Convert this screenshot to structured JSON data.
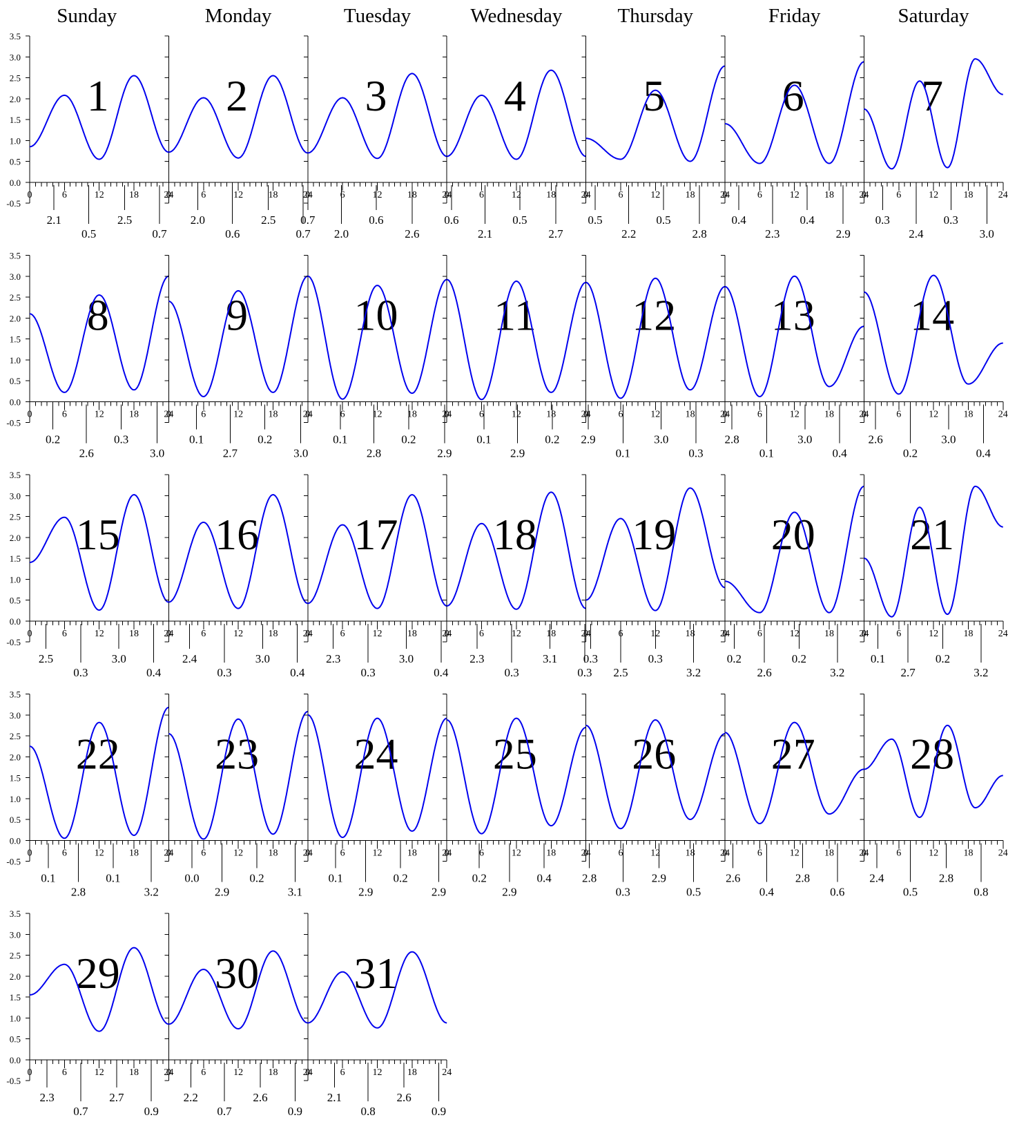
{
  "weekdays": [
    "Sunday",
    "Monday",
    "Tuesday",
    "Wednesday",
    "Thursday",
    "Friday",
    "Saturday"
  ],
  "colors": {
    "line": "#0000ee",
    "axis": "#000000",
    "text": "#000000",
    "background": "#ffffff"
  },
  "chart_data": {
    "type": "line",
    "layout": "monthly calendar grid of small multiples, weeks start on Sunday, 31 days",
    "x_axis": {
      "min": 0,
      "max": 24,
      "major_ticks": [
        0,
        6,
        12,
        18,
        24
      ],
      "minor_tick_step": 1
    },
    "y_axis": {
      "min": -0.5,
      "max": 3.5,
      "ticks": [
        "-0.5",
        "0.0",
        "0.5",
        "1.0",
        "1.5",
        "2.0",
        "2.5",
        "3.0",
        "3.5"
      ]
    },
    "grid": false,
    "legend": "none",
    "days": [
      {
        "day": 1,
        "y": [
          0.85,
          2.08,
          0.55,
          2.55,
          0.72
        ],
        "extrema": [
          {
            "hour": 4.2,
            "value": "2.1"
          },
          {
            "hour": 10.2,
            "value": "0.5"
          },
          {
            "hour": 16.4,
            "value": "2.5"
          },
          {
            "hour": 22.4,
            "value": "0.7"
          }
        ]
      },
      {
        "day": 2,
        "y": [
          0.72,
          2.02,
          0.58,
          2.55,
          0.7
        ],
        "extrema": [
          {
            "hour": 5.0,
            "value": "2.0"
          },
          {
            "hour": 11.0,
            "value": "0.6"
          },
          {
            "hour": 17.2,
            "value": "2.5"
          },
          {
            "hour": 23.2,
            "value": "0.7"
          }
        ]
      },
      {
        "day": 3,
        "y": [
          0.7,
          2.02,
          0.57,
          2.6,
          0.62
        ],
        "extrema": [
          {
            "hour": 0.0,
            "value": "0.7"
          },
          {
            "hour": 5.8,
            "value": "2.0"
          },
          {
            "hour": 11.8,
            "value": "0.6"
          },
          {
            "hour": 18.0,
            "value": "2.6"
          }
        ]
      },
      {
        "day": 4,
        "y": [
          0.62,
          2.08,
          0.55,
          2.68,
          0.62
        ],
        "extrema": [
          {
            "hour": 0.8,
            "value": "0.6"
          },
          {
            "hour": 6.6,
            "value": "2.1"
          },
          {
            "hour": 12.6,
            "value": "0.5"
          },
          {
            "hour": 18.8,
            "value": "2.7"
          }
        ]
      },
      {
        "day": 5,
        "y": [
          1.05,
          0.55,
          2.2,
          0.5,
          2.78
        ],
        "extrema": [
          {
            "hour": 1.6,
            "value": "0.5"
          },
          {
            "hour": 7.4,
            "value": "2.2"
          },
          {
            "hour": 13.4,
            "value": "0.5"
          },
          {
            "hour": 19.6,
            "value": "2.8"
          }
        ]
      },
      {
        "day": 6,
        "y": [
          1.4,
          0.45,
          2.32,
          0.45,
          2.88
        ],
        "extrema": [
          {
            "hour": 2.4,
            "value": "0.4"
          },
          {
            "hour": 8.2,
            "value": "2.3"
          },
          {
            "hour": 14.2,
            "value": "0.4"
          },
          {
            "hour": 20.4,
            "value": "2.9"
          }
        ]
      },
      {
        "day": 7,
        "y": [
          1.75,
          0.32,
          2.42,
          0.35,
          2.95,
          2.1
        ],
        "extrema": [
          {
            "hour": 3.2,
            "value": "0.3"
          },
          {
            "hour": 9.0,
            "value": "2.4"
          },
          {
            "hour": 15.0,
            "value": "0.3"
          },
          {
            "hour": 21.2,
            "value": "3.0"
          }
        ]
      },
      {
        "day": 8,
        "y": [
          2.1,
          0.22,
          2.55,
          0.28,
          3.0
        ],
        "extrema": [
          {
            "hour": 4.0,
            "value": "0.2"
          },
          {
            "hour": 9.8,
            "value": "2.6"
          },
          {
            "hour": 15.8,
            "value": "0.3"
          },
          {
            "hour": 22.0,
            "value": "3.0"
          }
        ]
      },
      {
        "day": 9,
        "y": [
          2.4,
          0.12,
          2.65,
          0.22,
          3.0
        ],
        "extrema": [
          {
            "hour": 4.8,
            "value": "0.1"
          },
          {
            "hour": 10.6,
            "value": "2.7"
          },
          {
            "hour": 16.6,
            "value": "0.2"
          },
          {
            "hour": 22.8,
            "value": "3.0"
          }
        ]
      },
      {
        "day": 10,
        "y": [
          3.0,
          0.06,
          2.78,
          0.2,
          2.92
        ],
        "extrema": [
          {
            "hour": 5.6,
            "value": "0.1"
          },
          {
            "hour": 11.4,
            "value": "2.8"
          },
          {
            "hour": 17.4,
            "value": "0.2"
          },
          {
            "hour": 23.6,
            "value": "2.9"
          }
        ]
      },
      {
        "day": 11,
        "y": [
          2.92,
          0.05,
          2.88,
          0.22,
          2.85
        ],
        "extrema": [
          {
            "hour": 6.4,
            "value": "0.1"
          },
          {
            "hour": 12.2,
            "value": "2.9"
          },
          {
            "hour": 18.2,
            "value": "0.2"
          }
        ]
      },
      {
        "day": 12,
        "y": [
          2.85,
          0.08,
          2.95,
          0.28,
          2.75
        ],
        "extrema": [
          {
            "hour": 0.4,
            "value": "2.9"
          },
          {
            "hour": 6.4,
            "value": "0.1"
          },
          {
            "hour": 13.0,
            "value": "3.0"
          },
          {
            "hour": 19.0,
            "value": "0.3"
          }
        ]
      },
      {
        "day": 13,
        "y": [
          2.75,
          0.12,
          3.0,
          0.36,
          1.8
        ],
        "extrema": [
          {
            "hour": 1.2,
            "value": "2.8"
          },
          {
            "hour": 7.2,
            "value": "0.1"
          },
          {
            "hour": 13.8,
            "value": "3.0"
          },
          {
            "hour": 19.8,
            "value": "0.4"
          }
        ]
      },
      {
        "day": 14,
        "y": [
          2.62,
          0.18,
          3.02,
          0.42,
          1.4
        ],
        "extrema": [
          {
            "hour": 2.0,
            "value": "2.6"
          },
          {
            "hour": 8.0,
            "value": "0.2"
          },
          {
            "hour": 14.6,
            "value": "3.0"
          },
          {
            "hour": 20.6,
            "value": "0.4"
          }
        ]
      },
      {
        "day": 15,
        "y": [
          1.4,
          2.48,
          0.26,
          3.02,
          0.45
        ],
        "extrema": [
          {
            "hour": 2.8,
            "value": "2.5"
          },
          {
            "hour": 8.8,
            "value": "0.3"
          },
          {
            "hour": 15.4,
            "value": "3.0"
          },
          {
            "hour": 21.4,
            "value": "0.4"
          }
        ]
      },
      {
        "day": 16,
        "y": [
          0.45,
          2.36,
          0.3,
          3.02,
          0.42
        ],
        "extrema": [
          {
            "hour": 3.6,
            "value": "2.4"
          },
          {
            "hour": 9.6,
            "value": "0.3"
          },
          {
            "hour": 16.2,
            "value": "3.0"
          },
          {
            "hour": 22.2,
            "value": "0.4"
          }
        ]
      },
      {
        "day": 17,
        "y": [
          0.42,
          2.3,
          0.3,
          3.02,
          0.36
        ],
        "extrema": [
          {
            "hour": 4.4,
            "value": "2.3"
          },
          {
            "hour": 10.4,
            "value": "0.3"
          },
          {
            "hour": 17.0,
            "value": "3.0"
          },
          {
            "hour": 23.0,
            "value": "0.4"
          }
        ]
      },
      {
        "day": 18,
        "y": [
          0.36,
          2.33,
          0.28,
          3.08,
          0.3
        ],
        "extrema": [
          {
            "hour": 5.2,
            "value": "2.3"
          },
          {
            "hour": 11.2,
            "value": "0.3"
          },
          {
            "hour": 17.8,
            "value": "3.1"
          },
          {
            "hour": 23.8,
            "value": "0.3"
          }
        ]
      },
      {
        "day": 19,
        "y": [
          0.5,
          2.45,
          0.25,
          3.18,
          0.8
        ],
        "extrema": [
          {
            "hour": 0.8,
            "value": "0.3"
          },
          {
            "hour": 6.0,
            "value": "2.5"
          },
          {
            "hour": 12.0,
            "value": "0.3"
          },
          {
            "hour": 18.6,
            "value": "3.2"
          }
        ]
      },
      {
        "day": 20,
        "y": [
          0.95,
          0.2,
          2.6,
          0.2,
          3.22
        ],
        "extrema": [
          {
            "hour": 1.6,
            "value": "0.2"
          },
          {
            "hour": 6.8,
            "value": "2.6"
          },
          {
            "hour": 12.8,
            "value": "0.2"
          },
          {
            "hour": 19.4,
            "value": "3.2"
          }
        ]
      },
      {
        "day": 21,
        "y": [
          1.5,
          0.1,
          2.72,
          0.16,
          3.22,
          2.25
        ],
        "extrema": [
          {
            "hour": 2.4,
            "value": "0.1"
          },
          {
            "hour": 7.6,
            "value": "2.7"
          },
          {
            "hour": 13.6,
            "value": "0.2"
          },
          {
            "hour": 20.2,
            "value": "3.2"
          }
        ]
      },
      {
        "day": 22,
        "y": [
          2.25,
          0.05,
          2.82,
          0.12,
          3.18
        ],
        "extrema": [
          {
            "hour": 3.2,
            "value": "0.1"
          },
          {
            "hour": 8.4,
            "value": "2.8"
          },
          {
            "hour": 14.4,
            "value": "0.1"
          },
          {
            "hour": 21.0,
            "value": "3.2"
          }
        ]
      },
      {
        "day": 23,
        "y": [
          2.55,
          0.03,
          2.9,
          0.15,
          3.08
        ],
        "extrema": [
          {
            "hour": 4.0,
            "value": "0.0"
          },
          {
            "hour": 9.2,
            "value": "2.9"
          },
          {
            "hour": 15.2,
            "value": "0.2"
          },
          {
            "hour": 21.8,
            "value": "3.1"
          }
        ]
      },
      {
        "day": 24,
        "y": [
          3.0,
          0.07,
          2.92,
          0.22,
          2.92
        ],
        "extrema": [
          {
            "hour": 4.8,
            "value": "0.1"
          },
          {
            "hour": 10.0,
            "value": "2.9"
          },
          {
            "hour": 16.0,
            "value": "0.2"
          },
          {
            "hour": 22.6,
            "value": "2.9"
          }
        ]
      },
      {
        "day": 25,
        "y": [
          2.88,
          0.16,
          2.92,
          0.35,
          2.7
        ],
        "extrema": [
          {
            "hour": 5.6,
            "value": "0.2"
          },
          {
            "hour": 10.8,
            "value": "2.9"
          },
          {
            "hour": 16.8,
            "value": "0.4"
          }
        ]
      },
      {
        "day": 26,
        "y": [
          2.75,
          0.28,
          2.88,
          0.5,
          2.55
        ],
        "extrema": [
          {
            "hour": 0.6,
            "value": "2.8"
          },
          {
            "hour": 6.4,
            "value": "0.3"
          },
          {
            "hour": 12.6,
            "value": "2.9"
          },
          {
            "hour": 18.6,
            "value": "0.5"
          }
        ]
      },
      {
        "day": 27,
        "y": [
          2.58,
          0.4,
          2.82,
          0.63,
          1.7
        ],
        "extrema": [
          {
            "hour": 1.4,
            "value": "2.6"
          },
          {
            "hour": 7.2,
            "value": "0.4"
          },
          {
            "hour": 13.4,
            "value": "2.8"
          },
          {
            "hour": 19.4,
            "value": "0.6"
          }
        ]
      },
      {
        "day": 28,
        "y": [
          1.7,
          2.42,
          0.55,
          2.75,
          0.78,
          1.55
        ],
        "extrema": [
          {
            "hour": 2.2,
            "value": "2.4"
          },
          {
            "hour": 8.0,
            "value": "0.5"
          },
          {
            "hour": 14.2,
            "value": "2.8"
          },
          {
            "hour": 20.2,
            "value": "0.8"
          }
        ]
      },
      {
        "day": 29,
        "y": [
          1.55,
          2.28,
          0.68,
          2.68,
          0.85
        ],
        "extrema": [
          {
            "hour": 3.0,
            "value": "2.3"
          },
          {
            "hour": 8.8,
            "value": "0.7"
          },
          {
            "hour": 15.0,
            "value": "2.7"
          },
          {
            "hour": 21.0,
            "value": "0.9"
          }
        ]
      },
      {
        "day": 30,
        "y": [
          0.85,
          2.16,
          0.74,
          2.6,
          0.88
        ],
        "extrema": [
          {
            "hour": 3.8,
            "value": "2.2"
          },
          {
            "hour": 9.6,
            "value": "0.7"
          },
          {
            "hour": 15.8,
            "value": "2.6"
          },
          {
            "hour": 21.8,
            "value": "0.9"
          }
        ]
      },
      {
        "day": 31,
        "y": [
          0.88,
          2.1,
          0.76,
          2.58,
          0.88
        ],
        "extrema": [
          {
            "hour": 4.6,
            "value": "2.1"
          },
          {
            "hour": 10.4,
            "value": "0.8"
          },
          {
            "hour": 16.6,
            "value": "2.6"
          },
          {
            "hour": 22.6,
            "value": "0.9"
          }
        ]
      }
    ]
  }
}
